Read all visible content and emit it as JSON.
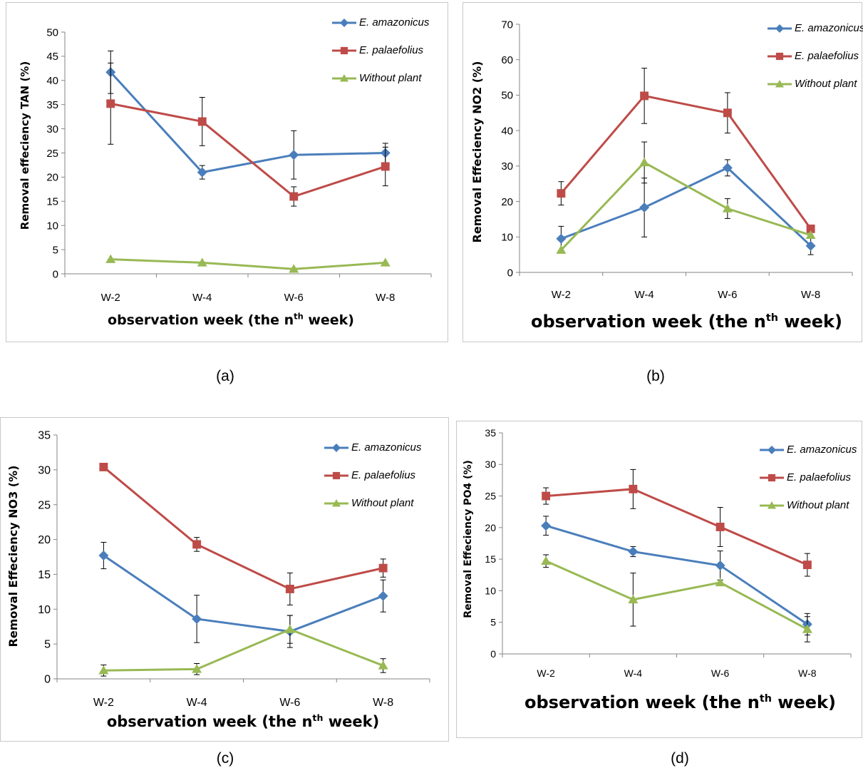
{
  "chart_data": [
    {
      "id": "a",
      "type": "line",
      "caption": "(a)",
      "ylabel": "Removal effeciency TAN (%)",
      "xlabel_main": "observation  week (the n",
      "xlabel_sup": "th",
      "xlabel_tail": "  week)",
      "categories": [
        "W-2",
        "W-4",
        "W-6",
        "W-8"
      ],
      "ylim": [
        0,
        50
      ],
      "yticks": [
        0,
        5,
        10,
        15,
        20,
        25,
        30,
        35,
        40,
        45,
        50
      ],
      "grid": false,
      "legend": "top-right",
      "series": [
        {
          "name": "E. amazonicus",
          "color": "#4a7ebb",
          "marker": "diamond",
          "values": [
            41.7,
            21.0,
            24.6,
            25.0
          ],
          "errors": [
            4.4,
            1.4,
            5.0,
            2.0
          ]
        },
        {
          "name": "E. palaefolius",
          "color": "#be4b48",
          "marker": "square",
          "values": [
            35.2,
            31.5,
            16.0,
            22.2
          ],
          "errors": [
            8.4,
            5.0,
            2.0,
            4.0
          ]
        },
        {
          "name": "Without plant",
          "color": "#98b954",
          "marker": "triangle",
          "values": [
            3.0,
            2.3,
            1.0,
            2.3
          ],
          "errors": [
            0,
            0,
            0,
            0
          ]
        }
      ]
    },
    {
      "id": "b",
      "type": "line",
      "caption": "(b)",
      "ylabel": "Removal Effeciency NO2 (%)",
      "xlabel_main": "observation week (the n",
      "xlabel_sup": "th",
      "xlabel_tail": "  week)",
      "categories": [
        "W-2",
        "W-4",
        "W-6",
        "W-8"
      ],
      "ylim": [
        0,
        70
      ],
      "yticks": [
        0,
        10,
        20,
        30,
        40,
        50,
        60,
        70
      ],
      "grid": false,
      "legend": "top-right",
      "series": [
        {
          "name": "E. amazonicus",
          "color": "#4a7ebb",
          "marker": "diamond",
          "values": [
            9.5,
            18.3,
            29.5,
            7.5
          ],
          "errors": [
            3.5,
            8.3,
            2.3,
            2.5
          ]
        },
        {
          "name": "E. palaefolius",
          "color": "#be4b48",
          "marker": "square",
          "values": [
            22.3,
            49.8,
            45.0,
            12.3
          ],
          "errors": [
            3.3,
            7.8,
            5.7,
            0
          ]
        },
        {
          "name": "Without plant",
          "color": "#98b954",
          "marker": "triangle",
          "values": [
            6.3,
            31.0,
            18.0,
            10.5
          ],
          "errors": [
            0,
            5.8,
            2.8,
            0
          ]
        }
      ]
    },
    {
      "id": "c",
      "type": "line",
      "caption": "(c)",
      "ylabel": "Removal Effeciency NO3 (%)",
      "xlabel_main": "observation  week (the n",
      "xlabel_sup": "th",
      "xlabel_tail": "  week)",
      "categories": [
        "W-2",
        "W-4",
        "W-6",
        "W-8"
      ],
      "ylim": [
        0,
        35
      ],
      "yticks": [
        0,
        5,
        10,
        15,
        20,
        25,
        30,
        35
      ],
      "grid": false,
      "legend": "top-right",
      "series": [
        {
          "name": "E. amazonicus",
          "color": "#4a7ebb",
          "marker": "diamond",
          "values": [
            17.7,
            8.6,
            6.8,
            11.9
          ],
          "errors": [
            1.9,
            3.4,
            2.3,
            2.3
          ]
        },
        {
          "name": "E. palaefolius",
          "color": "#be4b48",
          "marker": "square",
          "values": [
            30.4,
            19.3,
            12.9,
            15.9
          ],
          "errors": [
            0,
            1.0,
            2.3,
            1.3
          ]
        },
        {
          "name": "Without plant",
          "color": "#98b954",
          "marker": "triangle",
          "values": [
            1.2,
            1.4,
            7.1,
            1.9
          ],
          "errors": [
            0.8,
            0.8,
            2.0,
            1.0
          ]
        }
      ]
    },
    {
      "id": "d",
      "type": "line",
      "caption": "(d)",
      "ylabel": "Removal Effeciency PO4 (%)",
      "xlabel_main": "observation week (the n",
      "xlabel_sup": "th",
      "xlabel_tail": "  week)",
      "categories": [
        "W-2",
        "W-4",
        "W-6",
        "W-8"
      ],
      "ylim": [
        0,
        35
      ],
      "yticks": [
        0,
        5,
        10,
        15,
        20,
        25,
        30,
        35
      ],
      "grid": false,
      "legend": "top-right",
      "series": [
        {
          "name": "E. amazonicus",
          "color": "#4a7ebb",
          "marker": "diamond",
          "values": [
            20.3,
            16.2,
            14.0,
            4.7
          ],
          "errors": [
            1.5,
            0.8,
            2.3,
            1.7
          ]
        },
        {
          "name": "E. palaefolius",
          "color": "#be4b48",
          "marker": "square",
          "values": [
            25.0,
            26.1,
            20.1,
            14.1
          ],
          "errors": [
            1.3,
            3.1,
            3.1,
            1.8
          ]
        },
        {
          "name": "Without plant",
          "color": "#98b954",
          "marker": "triangle",
          "values": [
            14.7,
            8.6,
            11.3,
            3.9
          ],
          "errors": [
            1.0,
            4.2,
            0,
            2.0
          ]
        }
      ]
    }
  ]
}
